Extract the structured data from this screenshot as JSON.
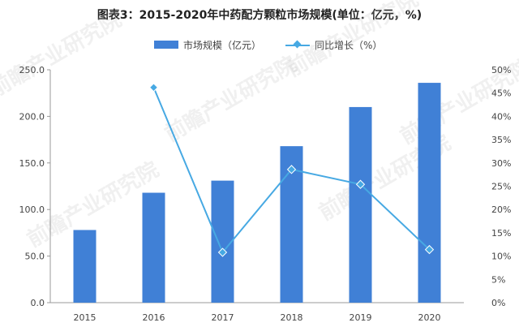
{
  "title": "图表3：2015-2020年中药配方颗粒市场规模(单位：亿元，%)",
  "watermark": "前瞻产业研究院",
  "colors": {
    "bar": "#4080D6",
    "line": "#47A9E3",
    "axis": "#999999",
    "grid": "#E6E6E6",
    "text": "#444444"
  },
  "chart_data": {
    "type": "bar",
    "categories": [
      "2015",
      "2016",
      "2017",
      "2018",
      "2019",
      "2020"
    ],
    "series": [
      {
        "name": "市场规模（亿元）",
        "kind": "bar",
        "axis": "left",
        "values": [
          78,
          118,
          131,
          168,
          210,
          236
        ]
      },
      {
        "name": "同比增长（%）",
        "kind": "line",
        "axis": "right",
        "values": [
          null,
          46.2,
          10.8,
          28.6,
          25.4,
          11.4
        ]
      }
    ],
    "yleft": {
      "lim": [
        0,
        250
      ],
      "ticks": [
        "0.0",
        "50.0",
        "100.0",
        "150.0",
        "200.0",
        "250.0"
      ]
    },
    "yright": {
      "lim": [
        0,
        50
      ],
      "ticks": [
        "0%",
        "5%",
        "10%",
        "15%",
        "20%",
        "25%",
        "30%",
        "35%",
        "40%",
        "45%",
        "50%"
      ]
    },
    "grid": false,
    "legend": "top-center"
  }
}
